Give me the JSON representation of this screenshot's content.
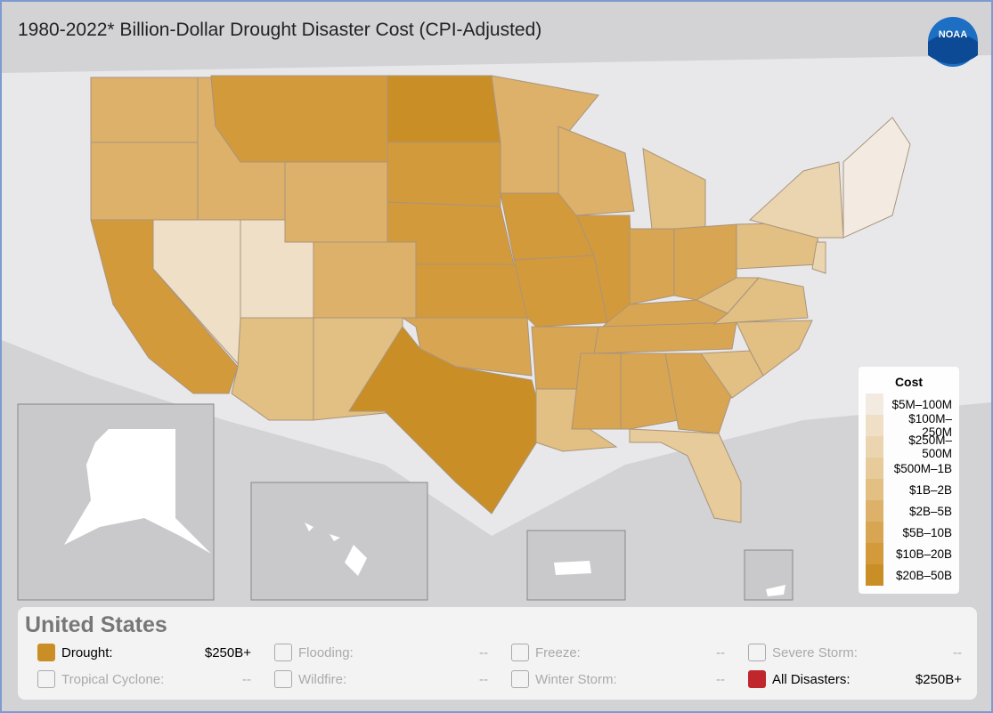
{
  "header": {
    "title": "1980-2022* Billion-Dollar Drought Disaster Cost (CPI-Adjusted)",
    "logo": "NOAA"
  },
  "legend": {
    "title": "Cost",
    "items": [
      {
        "label": "$5M–100M",
        "color": "#f3ebe1"
      },
      {
        "label": "$100M–250M",
        "color": "#efdfc6"
      },
      {
        "label": "$250M–500M",
        "color": "#ebd5b0"
      },
      {
        "label": "$500M–1B",
        "color": "#e7cb9a"
      },
      {
        "label": "$1B–2B",
        "color": "#e2bf82"
      },
      {
        "label": "$2B–5B",
        "color": "#ddb16a"
      },
      {
        "label": "$5B–10B",
        "color": "#d8a553"
      },
      {
        "label": "$10B–20B",
        "color": "#d39a3c"
      },
      {
        "label": "$20B–50B",
        "color": "#c98f26"
      }
    ]
  },
  "panel": {
    "title": "United States",
    "hazards": [
      {
        "name": "Drought:",
        "value": "$250B+",
        "checked": true,
        "color": "#c98f26"
      },
      {
        "name": "Flooding:",
        "value": "--",
        "checked": false
      },
      {
        "name": "Freeze:",
        "value": "--",
        "checked": false
      },
      {
        "name": "Severe Storm:",
        "value": "--",
        "checked": false
      },
      {
        "name": "Tropical Cyclone:",
        "value": "--",
        "checked": false
      },
      {
        "name": "Wildfire:",
        "value": "--",
        "checked": false
      },
      {
        "name": "Winter Storm:",
        "value": "--",
        "checked": false
      },
      {
        "name": "All Disasters:",
        "value": "$250B+",
        "checked": true,
        "color": "#c0272d"
      }
    ]
  }
}
